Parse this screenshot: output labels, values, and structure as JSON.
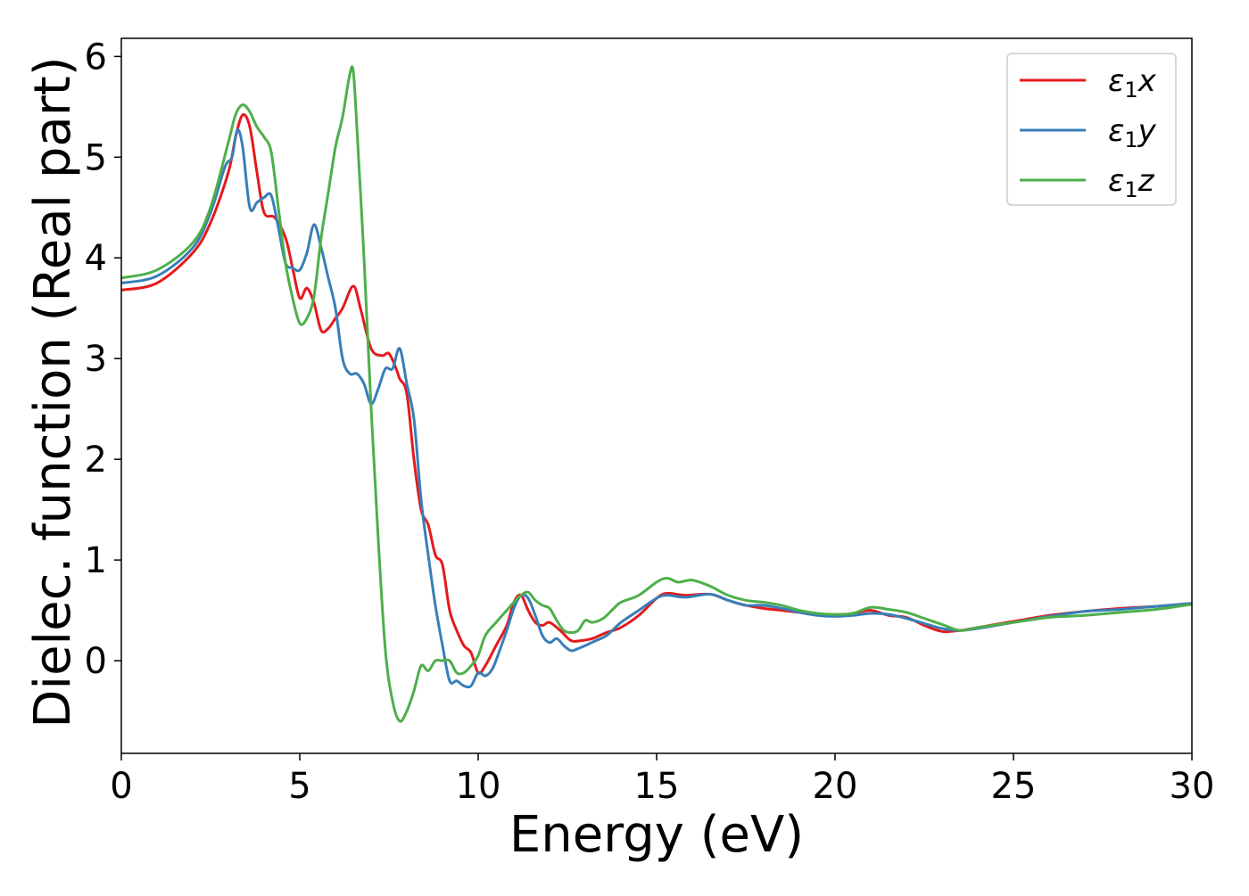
{
  "chart_data": {
    "type": "line",
    "title": "",
    "xlabel": "Energy (eV)",
    "ylabel": "Dielec. function (Real part)",
    "xlim": [
      0,
      30
    ],
    "ylim": [
      -0.92,
      6.18
    ],
    "xticks": [
      0,
      5,
      10,
      15,
      20,
      25,
      30
    ],
    "xtick_labels": [
      "0",
      "5",
      "10",
      "15",
      "20",
      "25",
      "30"
    ],
    "yticks": [
      0,
      1,
      2,
      3,
      4,
      5,
      6
    ],
    "ytick_labels": [
      "0",
      "1",
      "2",
      "3",
      "4",
      "5",
      "6"
    ],
    "grid": false,
    "legend_position": "top-right",
    "series": [
      {
        "name": "ε₁x",
        "name_base": "ε",
        "name_sub": "1",
        "name_tail": "x",
        "color": "#e41a1c",
        "x": [
          0,
          1,
          2,
          2.5,
          3,
          3.2,
          3.4,
          3.6,
          3.8,
          4,
          4.3,
          4.6,
          4.8,
          5,
          5.2,
          5.4,
          5.6,
          5.8,
          6,
          6.2,
          6.5,
          6.7,
          7,
          7.3,
          7.5,
          7.7,
          7.8,
          8,
          8.2,
          8.4,
          8.6,
          8.8,
          9,
          9.2,
          9.4,
          9.6,
          9.8,
          10,
          10.2,
          10.5,
          10.8,
          11,
          11.2,
          11.4,
          11.6,
          11.8,
          12,
          12.3,
          12.6,
          12.9,
          13.2,
          13.6,
          14,
          14.5,
          15,
          15.3,
          15.8,
          16.5,
          17,
          17.5,
          18,
          18.5,
          19,
          19.5,
          20,
          20.5,
          21,
          21.5,
          22,
          22.5,
          23,
          23.5,
          24,
          25,
          26,
          27,
          28,
          29,
          30
        ],
        "y": [
          3.68,
          3.75,
          4.05,
          4.35,
          4.85,
          5.2,
          5.42,
          5.3,
          4.85,
          4.45,
          4.4,
          4.2,
          3.9,
          3.6,
          3.7,
          3.55,
          3.28,
          3.3,
          3.4,
          3.5,
          3.72,
          3.5,
          3.1,
          3.03,
          3.05,
          2.9,
          2.8,
          2.65,
          2.0,
          1.5,
          1.35,
          1.05,
          0.95,
          0.5,
          0.3,
          0.15,
          0.08,
          -0.12,
          -0.05,
          0.15,
          0.35,
          0.58,
          0.65,
          0.5,
          0.38,
          0.35,
          0.38,
          0.3,
          0.2,
          0.2,
          0.22,
          0.28,
          0.33,
          0.45,
          0.62,
          0.67,
          0.65,
          0.66,
          0.6,
          0.55,
          0.52,
          0.5,
          0.48,
          0.46,
          0.45,
          0.47,
          0.5,
          0.45,
          0.43,
          0.35,
          0.29,
          0.3,
          0.33,
          0.39,
          0.45,
          0.49,
          0.52,
          0.54,
          0.57
        ]
      },
      {
        "name": "ε₁y",
        "name_base": "ε",
        "name_sub": "1",
        "name_tail": "y",
        "color": "#377eb8",
        "x": [
          0,
          1,
          2,
          2.5,
          2.9,
          3.1,
          3.25,
          3.4,
          3.6,
          3.8,
          4,
          4.2,
          4.4,
          4.6,
          4.8,
          5,
          5.2,
          5.4,
          5.6,
          5.8,
          6,
          6.2,
          6.4,
          6.6,
          6.8,
          7,
          7.2,
          7.4,
          7.6,
          7.8,
          8,
          8.2,
          8.4,
          8.6,
          8.8,
          9,
          9.2,
          9.4,
          9.6,
          9.8,
          10,
          10.2,
          10.4,
          10.6,
          10.8,
          11,
          11.2,
          11.4,
          11.6,
          11.8,
          12,
          12.2,
          12.4,
          12.6,
          12.8,
          13,
          13.3,
          13.6,
          14,
          14.5,
          15,
          15.3,
          15.8,
          16.5,
          17,
          17.5,
          18,
          18.5,
          19,
          19.5,
          20,
          20.5,
          21,
          21.5,
          22,
          22.5,
          23,
          23.5,
          24,
          25,
          26,
          27,
          28,
          29,
          30
        ],
        "y": [
          3.75,
          3.82,
          4.1,
          4.45,
          4.9,
          5.0,
          5.27,
          5.1,
          4.5,
          4.55,
          4.6,
          4.62,
          4.3,
          3.95,
          3.9,
          3.88,
          4.05,
          4.33,
          4.1,
          3.8,
          3.5,
          3.0,
          2.85,
          2.85,
          2.75,
          2.55,
          2.7,
          2.9,
          2.9,
          3.1,
          2.75,
          2.4,
          1.6,
          1.05,
          0.55,
          0.15,
          -0.2,
          -0.2,
          -0.25,
          -0.25,
          -0.12,
          -0.15,
          -0.08,
          0.1,
          0.3,
          0.52,
          0.65,
          0.62,
          0.45,
          0.25,
          0.18,
          0.22,
          0.15,
          0.1,
          0.12,
          0.15,
          0.2,
          0.25,
          0.38,
          0.5,
          0.62,
          0.65,
          0.63,
          0.66,
          0.6,
          0.55,
          0.55,
          0.52,
          0.48,
          0.45,
          0.44,
          0.45,
          0.47,
          0.46,
          0.42,
          0.37,
          0.32,
          0.3,
          0.32,
          0.38,
          0.44,
          0.49,
          0.51,
          0.54,
          0.57
        ]
      },
      {
        "name": "ε₁z",
        "name_base": "ε",
        "name_sub": "1",
        "name_tail": "z",
        "color": "#4daf4a",
        "x": [
          0,
          1,
          2,
          2.5,
          3,
          3.2,
          3.4,
          3.6,
          3.8,
          4,
          4.2,
          4.4,
          4.6,
          4.8,
          5,
          5.2,
          5.4,
          5.6,
          5.8,
          6,
          6.2,
          6.4,
          6.5,
          6.6,
          6.8,
          7,
          7.2,
          7.4,
          7.6,
          7.8,
          8,
          8.2,
          8.4,
          8.6,
          8.8,
          9,
          9.2,
          9.4,
          9.6,
          9.8,
          10,
          10.2,
          10.5,
          10.8,
          11,
          11.2,
          11.4,
          11.6,
          11.8,
          12,
          12.2,
          12.4,
          12.6,
          12.8,
          13,
          13.2,
          13.5,
          13.8,
          14,
          14.5,
          15,
          15.3,
          15.6,
          16,
          16.5,
          17,
          17.5,
          18,
          18.5,
          19,
          19.5,
          20,
          20.5,
          21,
          21.5,
          22,
          22.5,
          23,
          23.5,
          24,
          25,
          26,
          27,
          28,
          29,
          30
        ],
        "y": [
          3.8,
          3.88,
          4.15,
          4.5,
          5.15,
          5.42,
          5.52,
          5.45,
          5.3,
          5.2,
          5.05,
          4.5,
          3.95,
          3.6,
          3.35,
          3.4,
          3.62,
          4.2,
          4.65,
          5.1,
          5.4,
          5.82,
          5.85,
          5.3,
          4.0,
          2.5,
          1.2,
          0.1,
          -0.4,
          -0.6,
          -0.5,
          -0.3,
          -0.05,
          -0.1,
          0.0,
          0.0,
          0.0,
          -0.12,
          -0.12,
          -0.05,
          0.05,
          0.25,
          0.38,
          0.5,
          0.58,
          0.65,
          0.68,
          0.6,
          0.55,
          0.52,
          0.4,
          0.3,
          0.28,
          0.3,
          0.4,
          0.38,
          0.42,
          0.52,
          0.58,
          0.65,
          0.78,
          0.82,
          0.78,
          0.8,
          0.74,
          0.65,
          0.6,
          0.58,
          0.55,
          0.5,
          0.47,
          0.46,
          0.47,
          0.53,
          0.51,
          0.48,
          0.42,
          0.36,
          0.3,
          0.33,
          0.38,
          0.43,
          0.45,
          0.48,
          0.51,
          0.56
        ]
      }
    ]
  }
}
